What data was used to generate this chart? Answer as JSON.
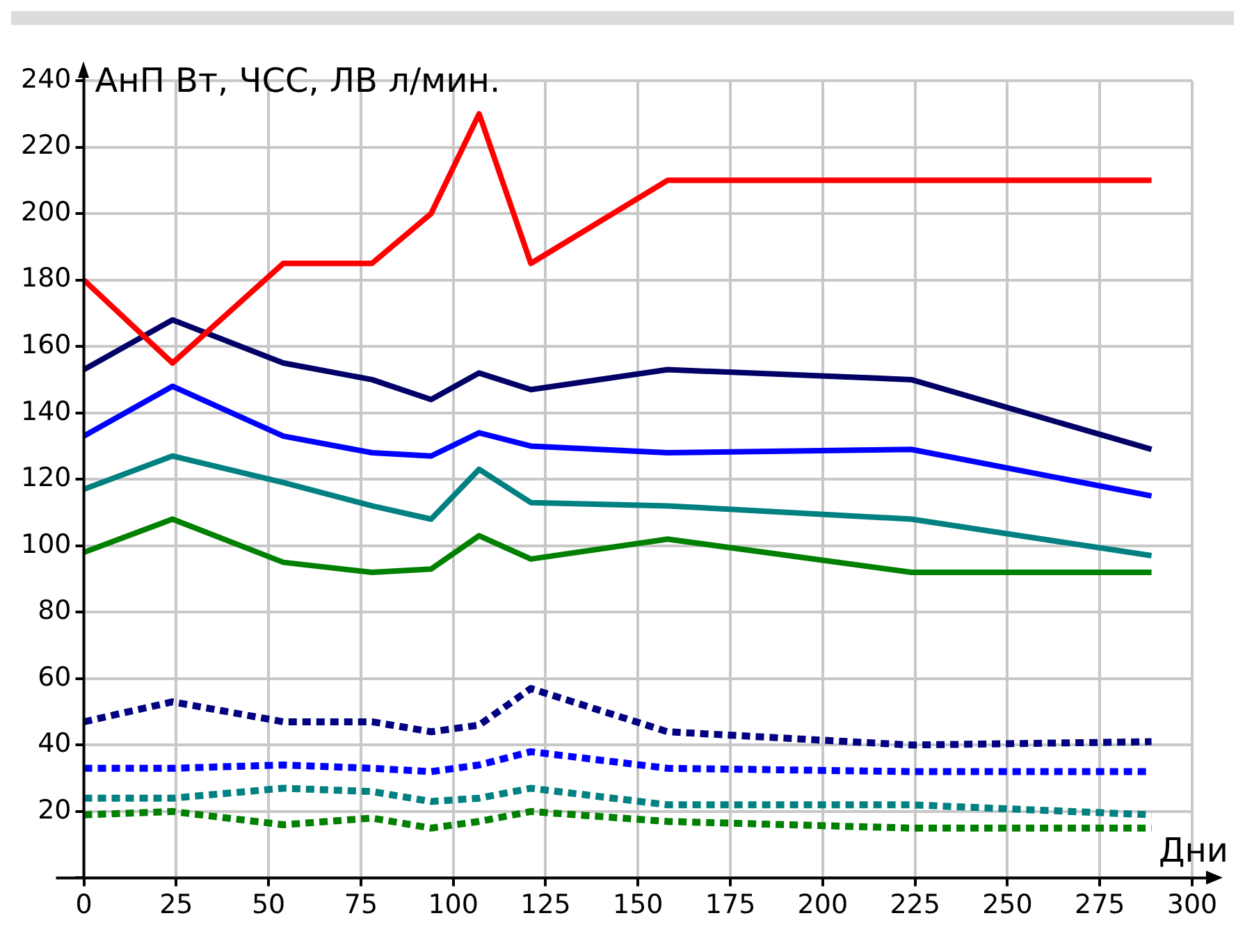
{
  "chart_data": {
    "type": "line",
    "ylabel": "АнП Вт, ЧСС, ЛВ л/мин.",
    "xlabel": "Дни",
    "x": [
      0,
      24,
      54,
      78,
      94,
      107,
      121,
      158,
      224,
      289
    ],
    "xlim": [
      0,
      300
    ],
    "xticks": [
      0,
      25,
      50,
      75,
      100,
      125,
      150,
      175,
      200,
      225,
      250,
      275,
      300
    ],
    "ylim": [
      0,
      240
    ],
    "yticks": [
      {
        "value": 0,
        "label": null
      },
      20,
      40,
      60,
      80,
      100,
      120,
      140,
      160,
      180,
      200,
      220,
      240
    ],
    "grid": true,
    "legend": false,
    "marker": "none",
    "series": [
      {
        "color": "#ff0000",
        "line_style": "solid",
        "values": [
          180,
          155,
          185,
          185,
          200,
          230,
          185,
          210,
          210,
          210
        ]
      },
      {
        "color": "#000066",
        "line_style": "solid",
        "values": [
          153,
          168,
          155,
          150,
          144,
          152,
          147,
          153,
          150,
          129
        ]
      },
      {
        "color": "#0000ff",
        "line_style": "solid",
        "values": [
          133,
          148,
          133,
          128,
          127,
          134,
          130,
          128,
          129,
          115
        ]
      },
      {
        "color": "#008080",
        "line_style": "solid",
        "values": [
          117,
          127,
          119,
          112,
          108,
          123,
          113,
          112,
          108,
          97
        ]
      },
      {
        "color": "#008000",
        "line_style": "solid",
        "values": [
          98,
          108,
          95,
          92,
          93,
          103,
          96,
          102,
          92,
          92
        ]
      },
      {
        "color": "#000080",
        "line_style": "dotted",
        "values": [
          47,
          53,
          47,
          47,
          44,
          46,
          57,
          44,
          40,
          41
        ]
      },
      {
        "color": "#0000ff",
        "line_style": "dotted",
        "values": [
          33,
          33,
          34,
          33,
          32,
          34,
          38,
          33,
          32,
          32
        ]
      },
      {
        "color": "#008080",
        "line_style": "dotted",
        "values": [
          24,
          24,
          27,
          26,
          23,
          24,
          27,
          22,
          22,
          19
        ]
      },
      {
        "color": "#008000",
        "line_style": "dotted",
        "values": [
          19,
          20,
          16,
          18,
          15,
          17,
          20,
          17,
          15,
          15
        ]
      }
    ]
  }
}
